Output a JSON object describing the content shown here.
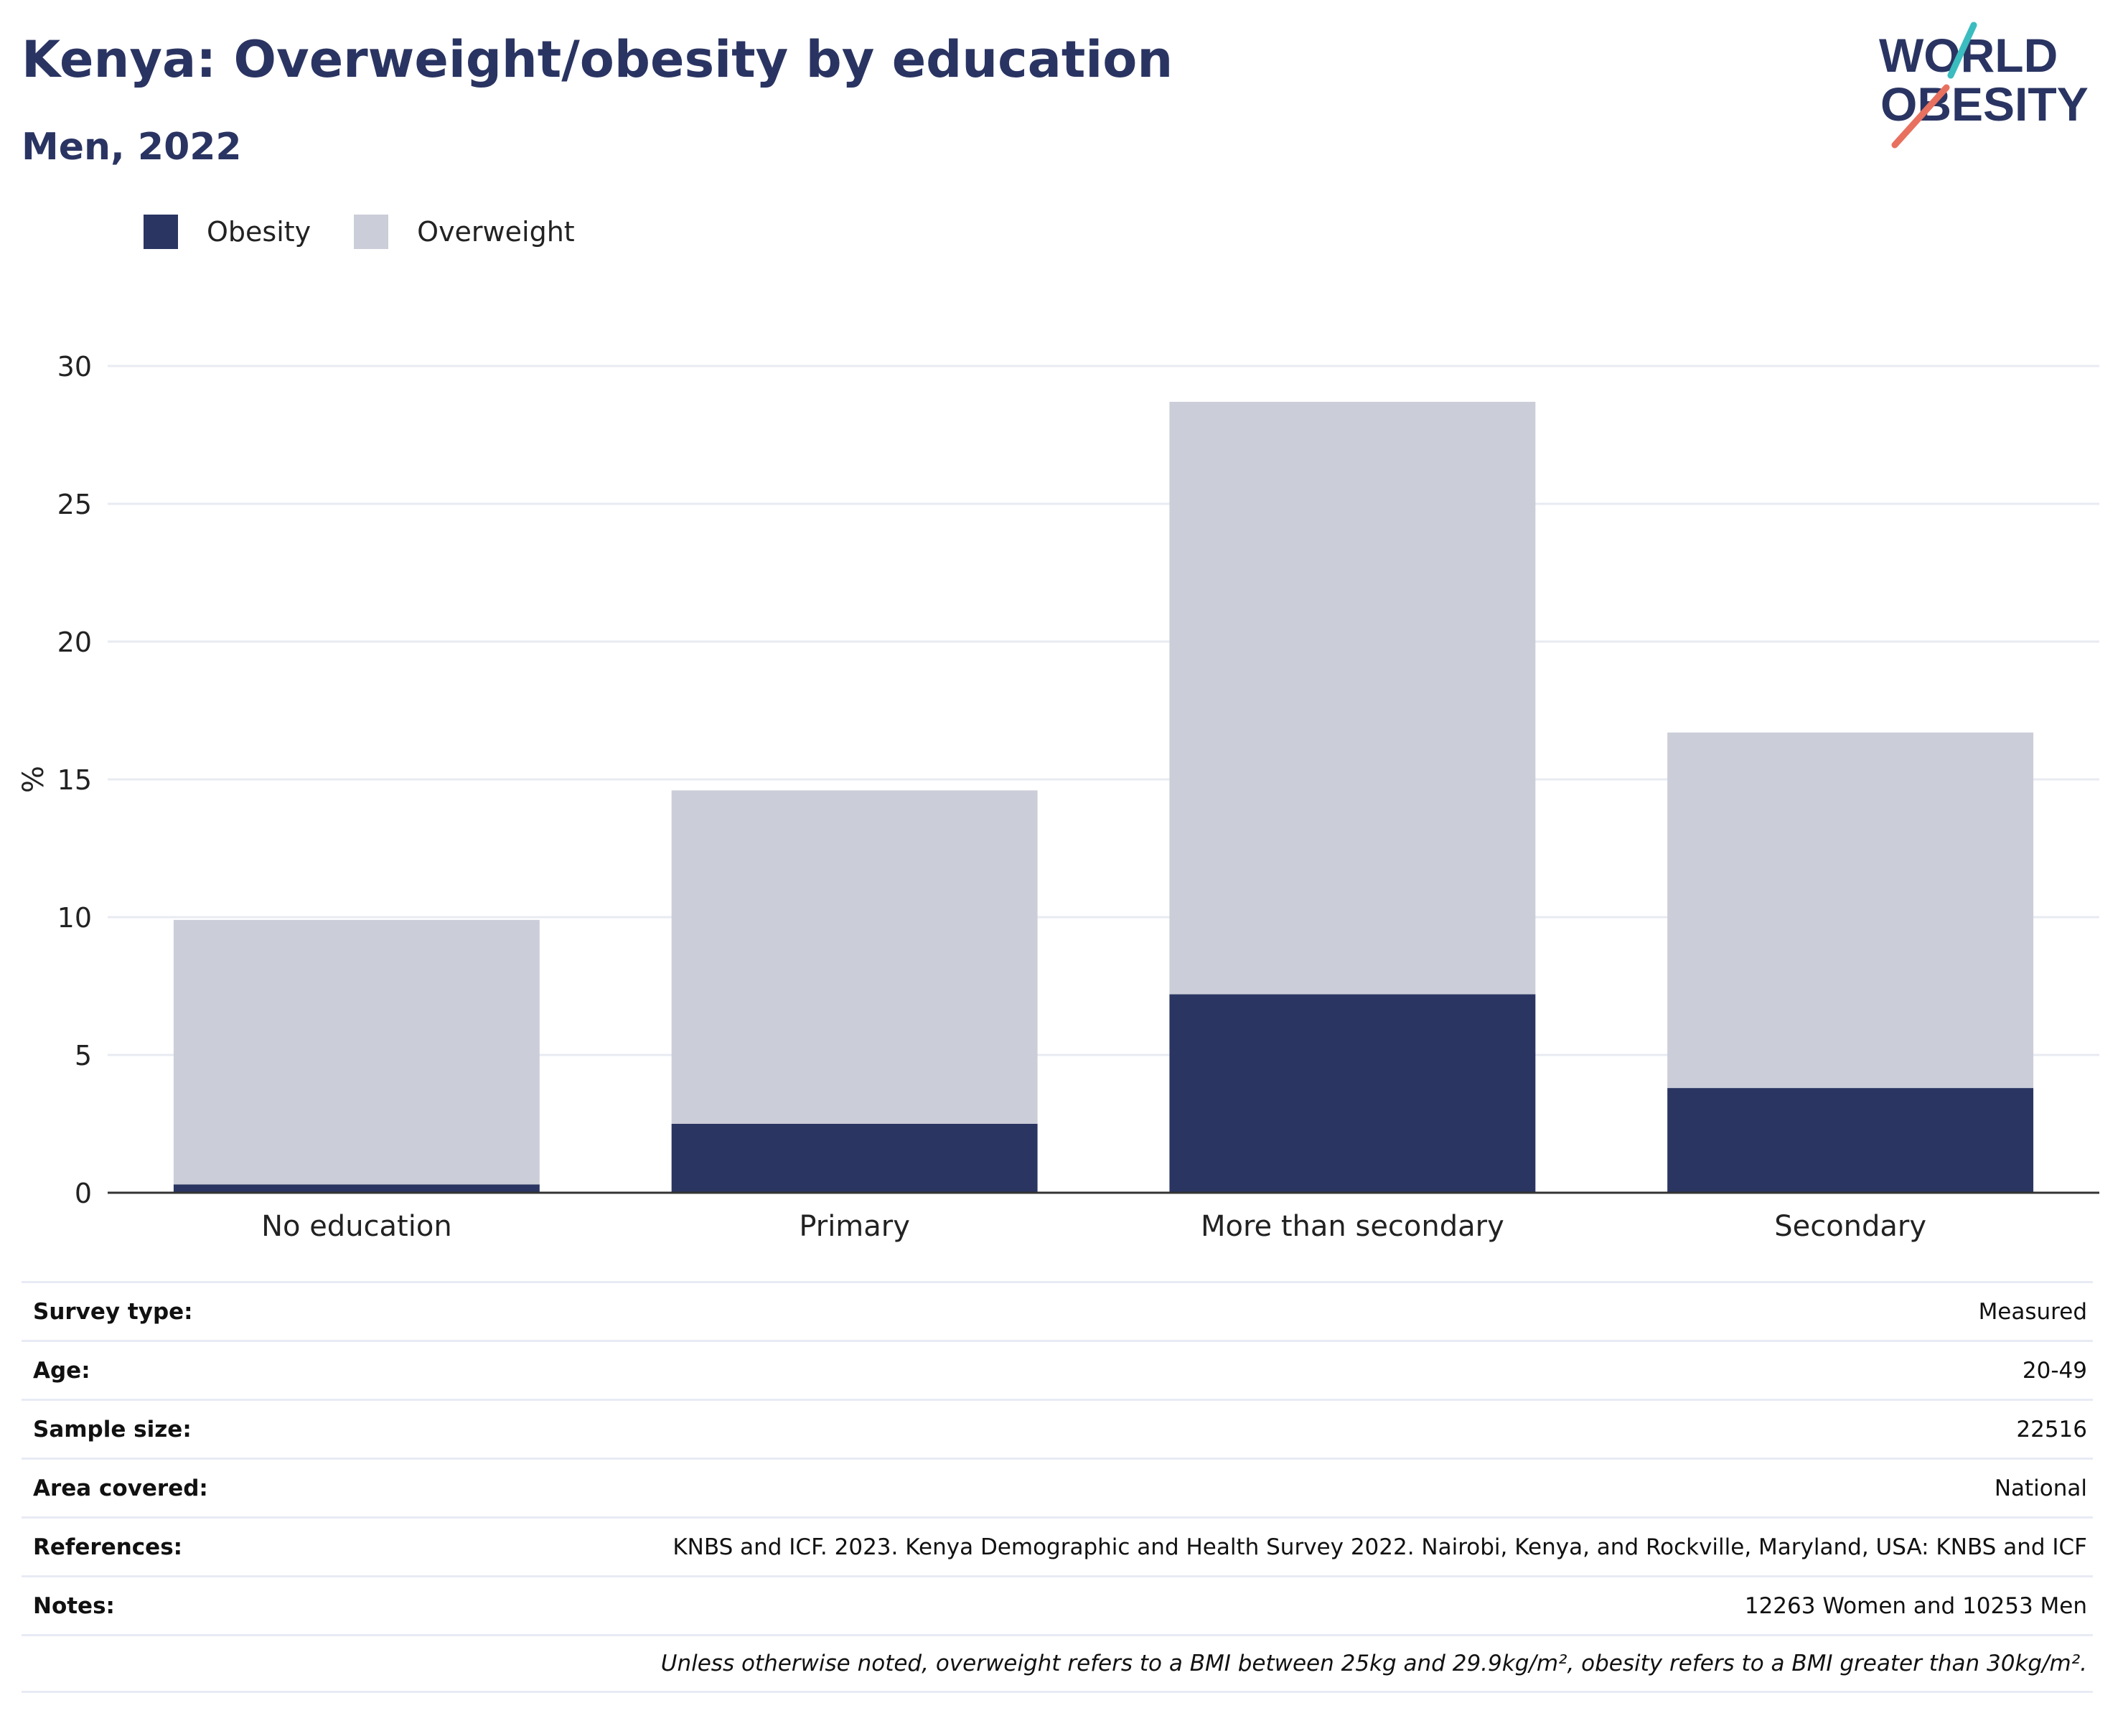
{
  "title": "Kenya: Overweight/obesity by education",
  "subtitle": "Men, 2022",
  "logo": {
    "line1": "WORLD",
    "line2": "OBESITY"
  },
  "colors": {
    "obesity": "#2a3562",
    "overweight": "#cbcdd8",
    "text": "#2a3462",
    "grid": "#e8ebf2",
    "logo_teal": "#3bbcbf",
    "logo_coral": "#e8705f"
  },
  "legend": [
    {
      "label": "Obesity",
      "color": "#2a3562"
    },
    {
      "label": "Overweight",
      "color": "#cbcdd8"
    }
  ],
  "chart_data": {
    "type": "bar",
    "stacked": true,
    "categories": [
      "No education",
      "Primary",
      "More than secondary",
      "Secondary"
    ],
    "series": [
      {
        "name": "Obesity",
        "values": [
          0.3,
          2.5,
          7.2,
          3.8
        ],
        "color": "#2a3562"
      },
      {
        "name": "Overweight",
        "values": [
          9.6,
          12.1,
          21.5,
          12.9
        ],
        "color": "#cbcdd8"
      }
    ],
    "ylabel": "%",
    "ylim": [
      0,
      30
    ],
    "yticks": [
      0,
      5,
      10,
      15,
      20,
      25,
      30
    ],
    "grid": true,
    "legend_position": "top-left"
  },
  "info": {
    "rows": [
      {
        "label": "Survey type:",
        "value": "Measured"
      },
      {
        "label": "Age:",
        "value": "20-49"
      },
      {
        "label": "Sample size:",
        "value": "22516"
      },
      {
        "label": "Area covered:",
        "value": "National"
      },
      {
        "label": "References:",
        "value": "KNBS and ICF. 2023. Kenya Demographic and Health Survey 2022. Nairobi, Kenya, and Rockville, Maryland, USA: KNBS and ICF"
      },
      {
        "label": "Notes:",
        "value": "12263 Women and 10253 Men"
      }
    ],
    "footnote": "Unless otherwise noted, overweight refers to a BMI between 25kg and 29.9kg/m², obesity refers to a BMI greater than 30kg/m²."
  }
}
